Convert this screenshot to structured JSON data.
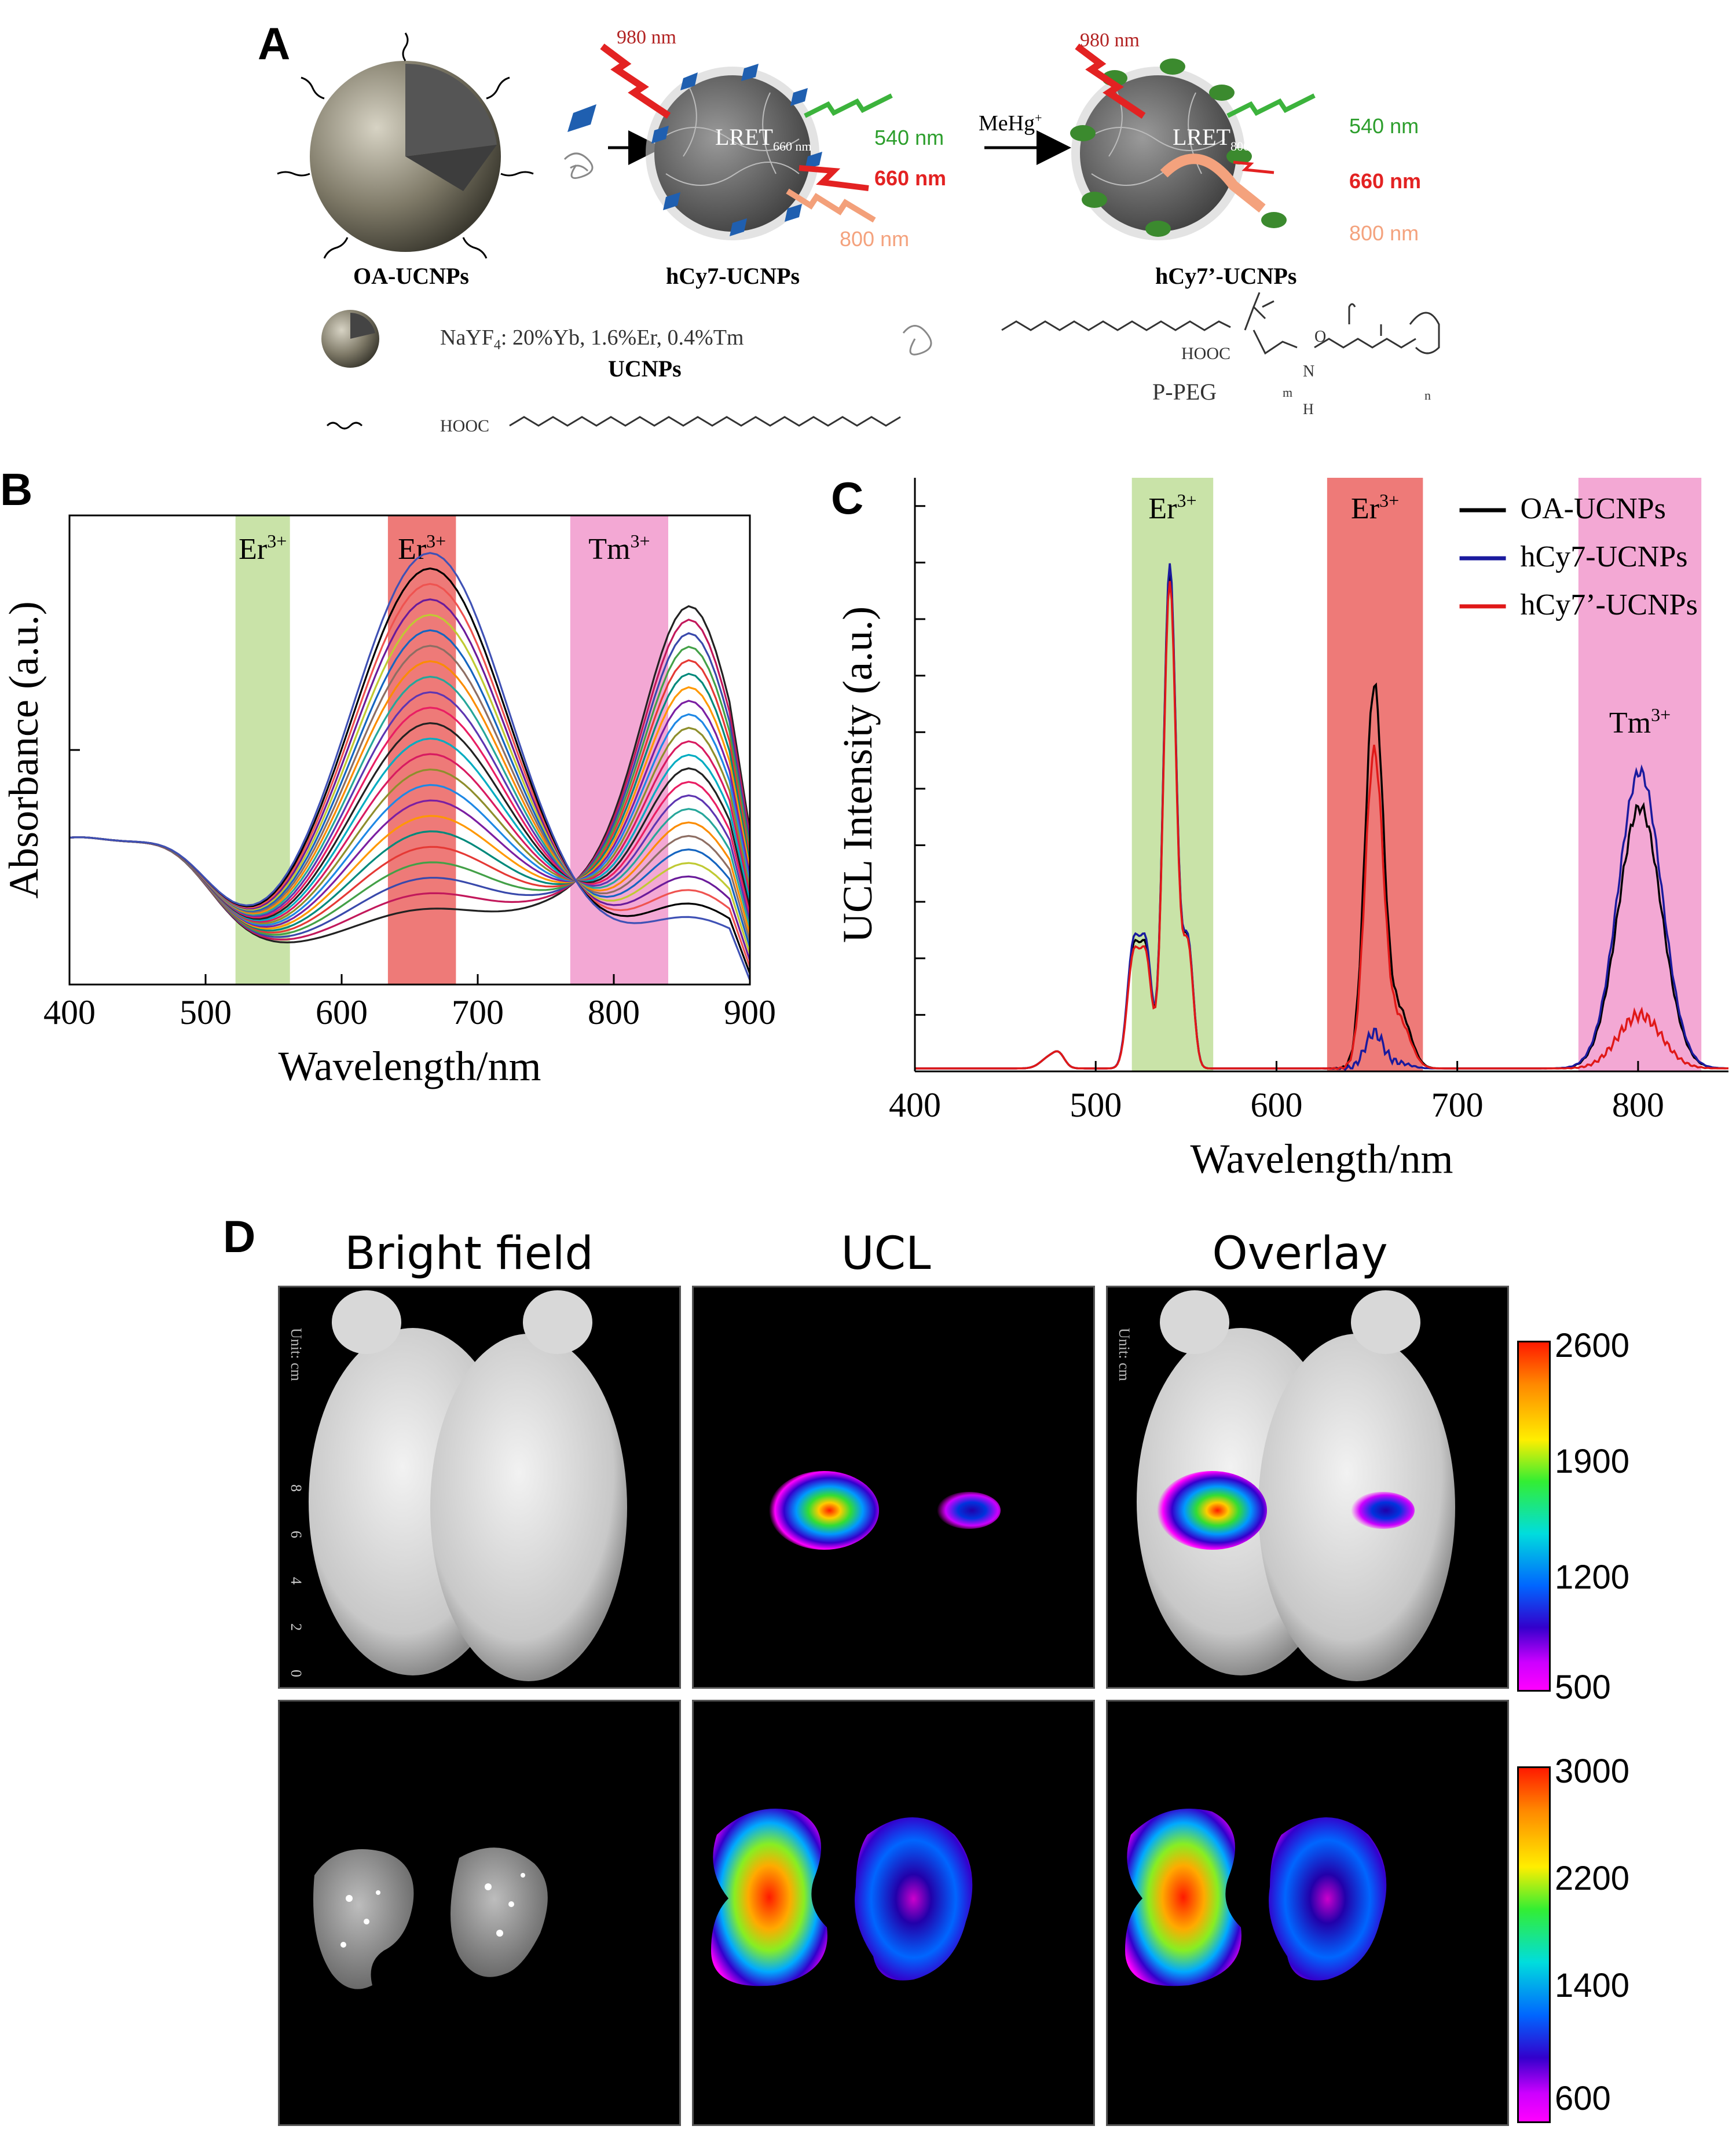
{
  "panels": {
    "a": {
      "letter": "A",
      "laser_in_1": "980 nm",
      "laser_in_2": "980 nm",
      "lret_1": "LRET",
      "lret_1_sub": "660 nm",
      "lret_2": "LRET",
      "lret_2_sub": "800 nm",
      "em_540_1": "540 nm",
      "em_660_1": "660 nm",
      "em_800_1": "800 nm",
      "em_540_2": "540 nm",
      "em_660_2": "660 nm",
      "em_800_2": "800 nm",
      "reagent": "MeHg",
      "reagent_sup": "+",
      "label_oa": "OA-UCNPs",
      "label_hcy7": "hCy7-UCNPs",
      "label_hcy7p": "hCy7’-UCNPs",
      "composition": "NaYF",
      "composition_sub": "4",
      "composition_rest": ": 20%Yb, 1.6%Er, 0.4%Tm",
      "ucnps": "UCNPs",
      "hooc_1": "HOOC",
      "hooc_2": "HOOC",
      "ppeg": "P-PEG",
      "m": "m",
      "n": "n",
      "o": "O",
      "h": "H",
      "nn": "N"
    },
    "b": {
      "letter": "B"
    },
    "c": {
      "letter": "C"
    },
    "d": {
      "letter": "D",
      "col1": "Bright field",
      "col2": "UCL",
      "col3": "Overlay",
      "unit_label": "Unit: cm",
      "ruler_ticks": [
        "8",
        "6",
        "4",
        "2",
        "0"
      ],
      "colorbar_top": [
        "2600",
        "1900",
        "1200",
        "500"
      ],
      "colorbar_bottom": [
        "3000",
        "2200",
        "1400",
        "600"
      ]
    }
  },
  "chart_data": [
    {
      "type": "line",
      "panel": "B",
      "xlabel": "Wavelength/nm",
      "ylabel": "Absorbance (a.u.)",
      "xlim": [
        400,
        900
      ],
      "xticks": [
        400,
        500,
        600,
        700,
        800,
        900
      ],
      "bands": [
        {
          "label": "Er",
          "sup": "3+",
          "from": 522,
          "to": 562,
          "color": "#c9e3a8"
        },
        {
          "label": "Er",
          "sup": "3+",
          "from": 634,
          "to": 684,
          "color": "#ee7a78"
        },
        {
          "label": "Tm",
          "sup": "3+",
          "from": 768,
          "to": 840,
          "color": "#f3a8d4"
        }
      ],
      "series_colors": [
        "#222222",
        "#c2185b",
        "#3949ab",
        "#43a047",
        "#e53935",
        "#00897b",
        "#ff9800",
        "#7b1fa2",
        "#1e88e5",
        "#8e8e2c",
        "#d81b60",
        "#00acc1",
        "#222222",
        "#e91e63",
        "#5e35b1",
        "#26a69a",
        "#fb8c00",
        "#8d6e63",
        "#1565c0",
        "#c0ca33",
        "#6a1b9a",
        "#ef5350",
        "#000000",
        "#3f51b5"
      ],
      "x": [
        400,
        450,
        480,
        520,
        560,
        600,
        640,
        665,
        700,
        740,
        768,
        800,
        830,
        857,
        880,
        900
      ],
      "peak660_max": 0.86,
      "peak857_max": 0.73,
      "iso_y": 0.36
    },
    {
      "type": "line",
      "panel": "C",
      "xlabel": "Wavelength/nm",
      "ylabel": "UCL Intensity (a.u.)",
      "xlim": [
        400,
        850
      ],
      "xticks": [
        400,
        500,
        600,
        700,
        800
      ],
      "bands": [
        {
          "label": "Er",
          "sup": "3+",
          "from": 520,
          "to": 565,
          "color": "#c9e3a8"
        },
        {
          "label": "Er",
          "sup": "3+",
          "from": 628,
          "to": 681,
          "color": "#ee7a78"
        },
        {
          "label": "Tm",
          "sup": "3+",
          "from": 767,
          "to": 835,
          "color": "#f3a8d4"
        }
      ],
      "series": [
        {
          "name": "OA-UCNPs",
          "color": "#000000",
          "p540": 0.84,
          "p521": 0.2,
          "p655": 0.64,
          "p800": 0.44
        },
        {
          "name": "hCy7-UCNPs",
          "color": "#1a1a9e",
          "p540": 0.85,
          "p521": 0.21,
          "p655": 0.06,
          "p800": 0.5
        },
        {
          "name": "hCy7’-UCNPs",
          "color": "#e01818",
          "p540": 0.82,
          "p521": 0.19,
          "p655": 0.53,
          "p800": 0.09
        }
      ]
    }
  ]
}
